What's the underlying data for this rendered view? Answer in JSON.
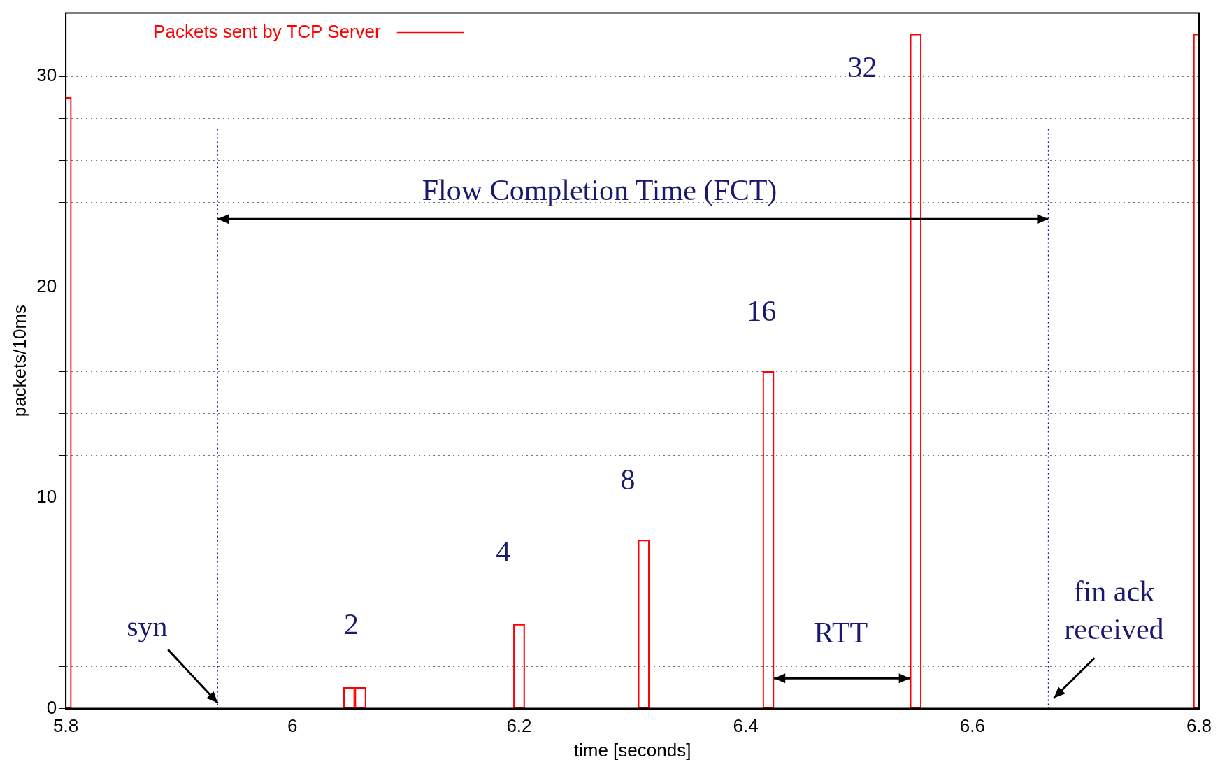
{
  "chart_data": {
    "type": "bar",
    "xlabel": "time [seconds]",
    "ylabel": "packets/10ms",
    "x": [
      5.8,
      6.05,
      6.06,
      6.2,
      6.31,
      6.42,
      6.55,
      6.8
    ],
    "series": [
      {
        "name": "Packets sent by TCP Server",
        "color": "#ff0000",
        "values": [
          29,
          1,
          1,
          4,
          8,
          16,
          32,
          32
        ]
      }
    ],
    "xlim": [
      5.8,
      6.8
    ],
    "xticks": [
      5.8,
      6,
      6.2,
      6.4,
      6.6,
      6.8
    ],
    "ylim": [
      0,
      33
    ],
    "yticks": [
      0,
      {
        "value": 2,
        "label": null
      },
      {
        "value": 4,
        "label": null
      },
      {
        "value": 6,
        "label": null
      },
      {
        "value": 8,
        "label": null
      },
      10,
      {
        "value": 12,
        "label": null
      },
      {
        "value": 14,
        "label": null
      },
      {
        "value": 16,
        "label": null
      },
      {
        "value": 18,
        "label": null
      },
      20,
      {
        "value": 22,
        "label": null
      },
      {
        "value": 24,
        "label": null
      },
      {
        "value": 26,
        "label": null
      },
      {
        "value": 28,
        "label": null
      },
      30,
      {
        "value": 32,
        "label": null
      }
    ],
    "grid": "y",
    "legend": "top left",
    "ref_lines": [
      {
        "axis": "x",
        "value": 5.934,
        "color": "#0000aa",
        "line_style": "dotted"
      },
      {
        "axis": "x",
        "value": 6.667,
        "color": "#0000aa",
        "line_style": "dotted"
      }
    ],
    "annotations": [
      "Flow Completion Time (FCT)",
      {
        "text": "syn",
        "x": 5.934,
        "y": 0
      },
      "2",
      "4",
      "8",
      "16",
      "32",
      "RTT",
      {
        "text": "fin ack\nreceived",
        "x": 6.667,
        "y": 0
      }
    ]
  }
}
